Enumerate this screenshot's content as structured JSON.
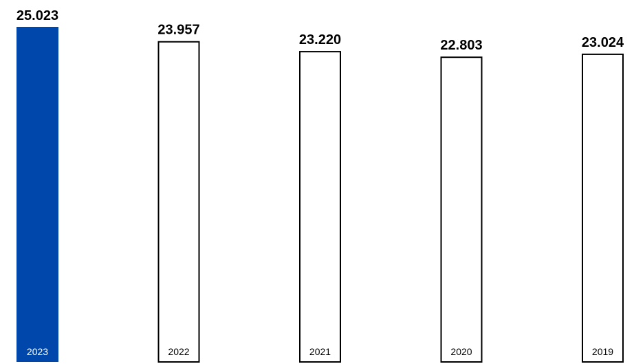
{
  "chart_data": {
    "type": "bar",
    "categories": [
      "2023",
      "2022",
      "2021",
      "2020",
      "2019"
    ],
    "values": [
      25.023,
      23.957,
      23.22,
      22.803,
      23.024
    ],
    "value_labels": [
      "25.023",
      "23.957",
      "23.220",
      "22.803",
      "23.024"
    ],
    "title": "",
    "xlabel": "",
    "ylabel": "",
    "ylim": [
      0,
      25.023
    ],
    "grid": false,
    "colors": {
      "highlight_fill": "#0047ab",
      "default_fill": "#ffffff",
      "outline": "#000000",
      "highlight_label": "#ffffff",
      "default_label": "#000000"
    },
    "highlight_index": 0
  }
}
